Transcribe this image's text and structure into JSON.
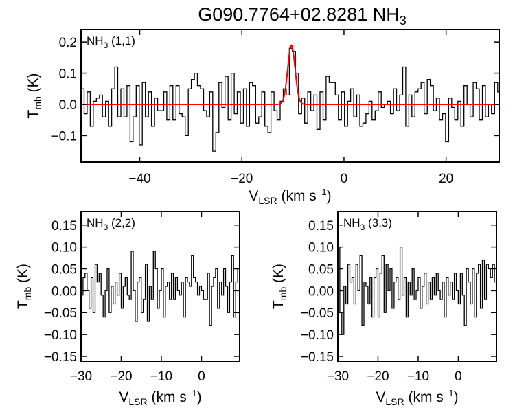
{
  "chart_data": [
    {
      "type": "line",
      "title": "G090.7764+02.8281 NH3",
      "panel_label": "NH3 (1,1)",
      "xlabel": "VLSR (km s-1)",
      "ylabel": "Tmb (K)",
      "xlim": [
        -51.5,
        30.4
      ],
      "ylim": [
        -0.185,
        0.24
      ],
      "xticks": [
        -40,
        -20,
        0,
        20
      ],
      "yticks": [
        0.2,
        0.1,
        0.0,
        -0.1
      ],
      "x_start": -51.5,
      "channel_width": 0.6,
      "values": [
        0.05,
        -0.03,
        0.04,
        -0.07,
        0.01,
        0.02,
        0.03,
        -0.04,
        0.01,
        -0.07,
        0.05,
        0.12,
        -0.04,
        0.05,
        -0.04,
        0.06,
        -0.12,
        -0.04,
        0.06,
        -0.13,
        0.07,
        -0.04,
        0.04,
        -0.07,
        0.02,
        -0.02,
        -0.02,
        0.04,
        -0.05,
        0.06,
        -0.05,
        0.06,
        -0.03,
        -0.04,
        -0.1,
        0.05,
        0.08,
        0.1,
        0.06,
        0.05,
        -0.02,
        -0.04,
        0.04,
        -0.15,
        -0.09,
        0.07,
        -0.01,
        0.09,
        -0.05,
        0.1,
        -0.03,
        0.04,
        -0.06,
        0.05,
        -0.07,
        0.07,
        0.06,
        -0.06,
        -0.04,
        0.04,
        -0.07,
        -0.09,
        0.04,
        -0.02,
        -0.05,
        0.01,
        0.05,
        0.03,
        0.18,
        0.17,
        0.1,
        -0.03,
        0.02,
        -0.06,
        0.04,
        -0.02,
        0.03,
        -0.08,
        0.04,
        -0.05,
        0.09,
        0.07,
        0.07,
        0.03,
        -0.05,
        0.04,
        -0.07,
        0.01,
        0.05,
        -0.04,
        0.03,
        -0.07,
        -0.06,
        -0.03,
        0.01,
        -0.05,
        -0.02,
        0.04,
        -0.01,
        0.0,
        0.01,
        -0.03,
        0.05,
        -0.02,
        0.03,
        0.12,
        -0.07,
        0.03,
        -0.04,
        0.04,
        0.05,
        0.07,
        -0.03,
        0.08,
        0.06,
        -0.02,
        0.02,
        -0.05,
        -0.03,
        -0.12,
        0.02,
        -0.01,
        -0.05,
        0.01,
        -0.07,
        0.06,
        0.0,
        -0.04,
        0.07,
        0.05,
        -0.05,
        0.06,
        -0.04,
        0.0,
        -0.03,
        0.07,
        0.04
      ],
      "fit": {
        "amplitude": 0.19,
        "center": -10.3,
        "sigma": 0.72,
        "color": "#ff0000"
      }
    },
    {
      "type": "line",
      "panel_label": "NH3 (2,2)",
      "xlabel": "VLSR (km s-1)",
      "ylabel": "Tmb (K)",
      "xlim": [
        -30,
        9.5
      ],
      "ylim": [
        -0.161,
        0.181
      ],
      "xticks": [
        -30,
        -20,
        -10,
        0
      ],
      "yticks": [
        0.15,
        0.1,
        0.05,
        0.0,
        -0.05,
        -0.1,
        -0.15
      ],
      "x_start": -30,
      "channel_width": 0.5,
      "values": [
        -0.01,
        0.03,
        0.04,
        0.0,
        -0.04,
        0.03,
        -0.05,
        0.06,
        0.02,
        0.04,
        -0.01,
        -0.06,
        0.0,
        0.05,
        -0.05,
        0.01,
        -0.03,
        0.02,
        -0.01,
        0.04,
        -0.04,
        0.01,
        0.03,
        -0.01,
        -0.02,
        0.09,
        0.0,
        -0.07,
        0.02,
        0.03,
        -0.05,
        -0.02,
        0.06,
        -0.07,
        0.01,
        -0.02,
        0.09,
        0.05,
        -0.04,
        0.0,
        0.05,
        -0.06,
        0.01,
        0.02,
        -0.02,
        0.04,
        -0.02,
        0.03,
        0.0,
        -0.01,
        0.02,
        -0.06,
        0.03,
        0.02,
        0.01,
        0.08,
        0.03,
        0.02,
        -0.01,
        0.01,
        0.0,
        -0.02,
        -0.02,
        0.04,
        -0.08,
        0.01,
        0.03,
        0.05,
        -0.04,
        0.02,
        -0.01,
        0.05,
        0.01,
        -0.05,
        0.02,
        0.08,
        -0.06,
        0.02,
        0.05
      ],
      "color": "#000000"
    },
    {
      "type": "line",
      "panel_label": "NH3 (3,3)",
      "xlabel": "VLSR (km s-1)",
      "ylabel": "Tmb (K)",
      "xlim": [
        -30,
        9.5
      ],
      "ylim": [
        -0.161,
        0.181
      ],
      "xticks": [
        -30,
        -20,
        -10,
        0
      ],
      "yticks": [
        0.15,
        0.1,
        0.05,
        0.0,
        -0.05,
        -0.1,
        -0.15
      ],
      "x_start": -30,
      "channel_width": 0.5,
      "values": [
        0.1,
        -0.05,
        -0.1,
        0.01,
        -0.03,
        0.06,
        0.02,
        0.03,
        -0.03,
        0.06,
        0.0,
        0.08,
        -0.08,
        0.02,
        0.01,
        -0.03,
        0.03,
        -0.06,
        0.03,
        0.05,
        -0.06,
        0.04,
        0.08,
        -0.05,
        0.06,
        0.0,
        0.05,
        -0.04,
        0.02,
        0.03,
        -0.02,
        0.1,
        -0.01,
        0.03,
        -0.06,
        0.02,
        -0.01,
        0.05,
        -0.02,
        0.0,
        0.03,
        -0.04,
        0.01,
        0.04,
        -0.03,
        0.02,
        -0.02,
        0.03,
        -0.01,
        0.04,
        0.0,
        -0.02,
        0.02,
        -0.06,
        0.03,
        -0.01,
        0.02,
        -0.02,
        0.04,
        0.0,
        -0.03,
        0.04,
        -0.01,
        -0.08,
        0.05,
        0.02,
        -0.03,
        0.05,
        -0.06,
        0.04,
        0.06,
        -0.04,
        0.07,
        -0.02,
        0.06,
        0.05,
        0.03,
        0.06,
        0.02
      ]
    }
  ]
}
